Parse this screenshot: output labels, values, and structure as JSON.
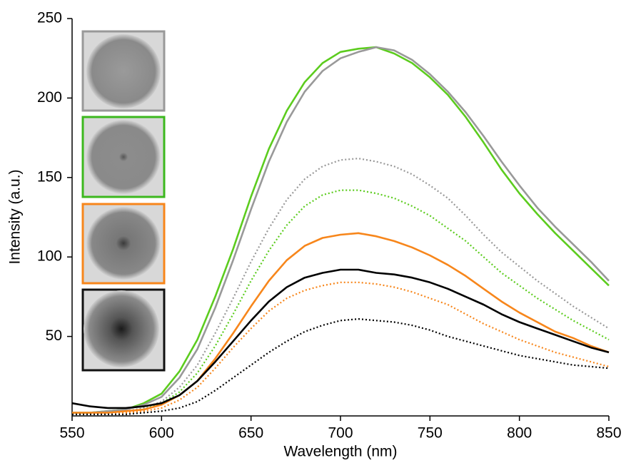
{
  "chart_data": {
    "type": "line",
    "x_label": "Wavelength (nm)",
    "y_label": "Intensity (a.u.)",
    "x": [
      550,
      560,
      570,
      580,
      590,
      600,
      610,
      620,
      630,
      640,
      650,
      660,
      670,
      680,
      690,
      700,
      710,
      720,
      730,
      740,
      750,
      760,
      770,
      780,
      790,
      800,
      810,
      820,
      830,
      840,
      850
    ],
    "xlim": [
      550,
      850
    ],
    "xticks": [
      550,
      600,
      650,
      700,
      750,
      800,
      850
    ],
    "ylim": [
      0,
      250
    ],
    "yticks": [
      50,
      100,
      150,
      200,
      250
    ],
    "series": [
      {
        "color": "#5ccc1e",
        "style": "solid",
        "values": [
          2,
          2,
          3,
          4,
          8,
          14,
          28,
          48,
          75,
          105,
          138,
          168,
          192,
          210,
          222,
          229,
          231,
          232,
          228,
          222,
          213,
          202,
          188,
          172,
          155,
          140,
          127,
          115,
          104,
          93,
          82
        ]
      },
      {
        "color": "#999999",
        "style": "solid",
        "values": [
          2,
          2,
          3,
          4,
          7,
          12,
          24,
          42,
          68,
          98,
          130,
          160,
          185,
          204,
          217,
          225,
          229,
          232,
          230,
          224,
          215,
          204,
          191,
          176,
          160,
          145,
          131,
          119,
          108,
          97,
          85
        ]
      },
      {
        "color": "#999999",
        "style": "dotted",
        "values": [
          2,
          2,
          2,
          3,
          5,
          9,
          18,
          32,
          52,
          74,
          97,
          118,
          136,
          149,
          157,
          161,
          162,
          160,
          157,
          152,
          145,
          137,
          126,
          114,
          103,
          94,
          85,
          77,
          69,
          62,
          55
        ]
      },
      {
        "color": "#5ccc1e",
        "style": "dotted",
        "values": [
          2,
          2,
          2,
          3,
          4,
          8,
          15,
          27,
          44,
          64,
          85,
          104,
          120,
          132,
          139,
          142,
          142,
          140,
          137,
          132,
          126,
          118,
          110,
          100,
          90,
          82,
          74,
          67,
          60,
          54,
          48
        ]
      },
      {
        "color": "#f7861b",
        "style": "solid",
        "values": [
          2,
          2,
          2,
          3,
          4,
          7,
          13,
          22,
          36,
          52,
          69,
          85,
          98,
          107,
          112,
          114,
          115,
          113,
          110,
          106,
          101,
          95,
          88,
          80,
          72,
          65,
          59,
          53,
          49,
          44,
          40
        ]
      },
      {
        "color": "#000000",
        "style": "solid",
        "values": [
          8,
          6,
          5,
          5,
          6,
          8,
          13,
          22,
          34,
          47,
          60,
          72,
          81,
          87,
          90,
          92,
          92,
          90,
          89,
          87,
          84,
          80,
          75,
          70,
          64,
          59,
          55,
          51,
          47,
          43,
          40
        ]
      },
      {
        "color": "#f7861b",
        "style": "dotted",
        "values": [
          2,
          2,
          2,
          2,
          3,
          5,
          10,
          18,
          30,
          43,
          55,
          66,
          74,
          79,
          82,
          84,
          84,
          83,
          81,
          78,
          74,
          70,
          64,
          58,
          53,
          48,
          44,
          40,
          37,
          34,
          31
        ]
      },
      {
        "color": "#000000",
        "style": "dotted",
        "values": [
          1,
          1,
          1,
          1,
          2,
          3,
          5,
          9,
          16,
          24,
          32,
          40,
          47,
          53,
          57,
          60,
          61,
          60,
          59,
          57,
          54,
          50,
          47,
          44,
          41,
          38,
          36,
          34,
          32,
          31,
          30
        ]
      }
    ]
  }
}
